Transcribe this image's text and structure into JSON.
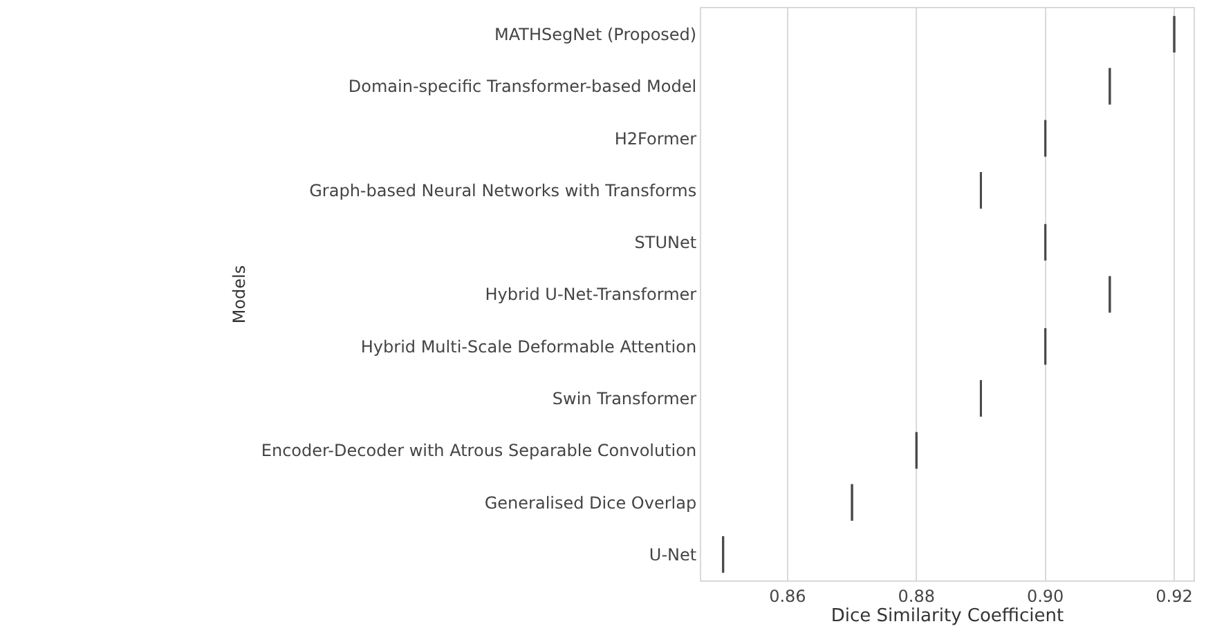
{
  "chart_data": {
    "type": "box",
    "orientation": "horizontal",
    "xlabel": "Dice Similarity Coefficient",
    "ylabel": "Models",
    "categories": [
      "MATHSegNet (Proposed)",
      "Domain-specific Transformer-based Model",
      "H2Former",
      "Graph-based Neural Networks with Transforms",
      "STUNet",
      "Hybrid U-Net-Transformer",
      "Hybrid Multi-Scale Deformable Attention",
      "Swin Transformer",
      "Encoder-Decoder with Atrous Separable Convolution",
      "Generalised Dice Overlap",
      "U-Net"
    ],
    "boxes": [
      {
        "low": 0.92,
        "q1": 0.92,
        "median": 0.92,
        "q3": 0.92,
        "high": 0.92
      },
      {
        "low": 0.91,
        "q1": 0.91,
        "median": 0.91,
        "q3": 0.91,
        "high": 0.91
      },
      {
        "low": 0.9,
        "q1": 0.9,
        "median": 0.9,
        "q3": 0.9,
        "high": 0.9
      },
      {
        "low": 0.89,
        "q1": 0.89,
        "median": 0.89,
        "q3": 0.89,
        "high": 0.89
      },
      {
        "low": 0.9,
        "q1": 0.9,
        "median": 0.9,
        "q3": 0.9,
        "high": 0.9
      },
      {
        "low": 0.91,
        "q1": 0.91,
        "median": 0.91,
        "q3": 0.91,
        "high": 0.91
      },
      {
        "low": 0.9,
        "q1": 0.9,
        "median": 0.9,
        "q3": 0.9,
        "high": 0.9
      },
      {
        "low": 0.89,
        "q1": 0.89,
        "median": 0.89,
        "q3": 0.89,
        "high": 0.89
      },
      {
        "low": 0.88,
        "q1": 0.88,
        "median": 0.88,
        "q3": 0.88,
        "high": 0.88
      },
      {
        "low": 0.87,
        "q1": 0.87,
        "median": 0.87,
        "q3": 0.87,
        "high": 0.87
      },
      {
        "low": 0.85,
        "q1": 0.85,
        "median": 0.85,
        "q3": 0.85,
        "high": 0.85
      }
    ],
    "color": "#4a4a4a",
    "xlim": [
      0.8466,
      0.923
    ],
    "xticks": [
      {
        "value": 0.86,
        "label": "0.86"
      },
      {
        "value": 0.88,
        "label": "0.88"
      },
      {
        "value": 0.9,
        "label": "0.90"
      },
      {
        "value": 0.92,
        "label": "0.92"
      }
    ],
    "grid": "x"
  }
}
